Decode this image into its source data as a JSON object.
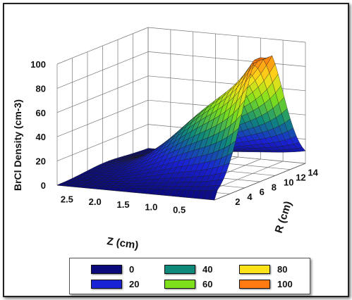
{
  "chart_data": {
    "type": "surface",
    "zlabel": "BrCl Density (cm-3)",
    "xlabel": "Z (cm)",
    "ylabel": "R (cm)",
    "z_ticks": [
      "0",
      "20",
      "40",
      "60",
      "80",
      "100"
    ],
    "z_axis_ticks": [
      "2.5",
      "2.0",
      "1.5",
      "1.0",
      "0.5"
    ],
    "r_axis_ticks": [
      "2",
      "4",
      "6",
      "8",
      "10",
      "12",
      "14"
    ],
    "zlim": [
      0,
      100
    ],
    "z_range": [
      0,
      2.8
    ],
    "r_range": [
      0,
      15
    ],
    "grid": true,
    "surface_peak": {
      "z": 0,
      "r": 8,
      "value": 100
    },
    "legend": {
      "placement": "bottom",
      "items": [
        {
          "label": "0",
          "color": "#0a0a7a"
        },
        {
          "label": "40",
          "color": "#0f8a7a"
        },
        {
          "label": "80",
          "color": "#ffe21a"
        },
        {
          "label": "20",
          "color": "#1a22d6"
        },
        {
          "label": "60",
          "color": "#7ee01c"
        },
        {
          "label": "100",
          "color": "#ff7a10"
        }
      ]
    }
  }
}
